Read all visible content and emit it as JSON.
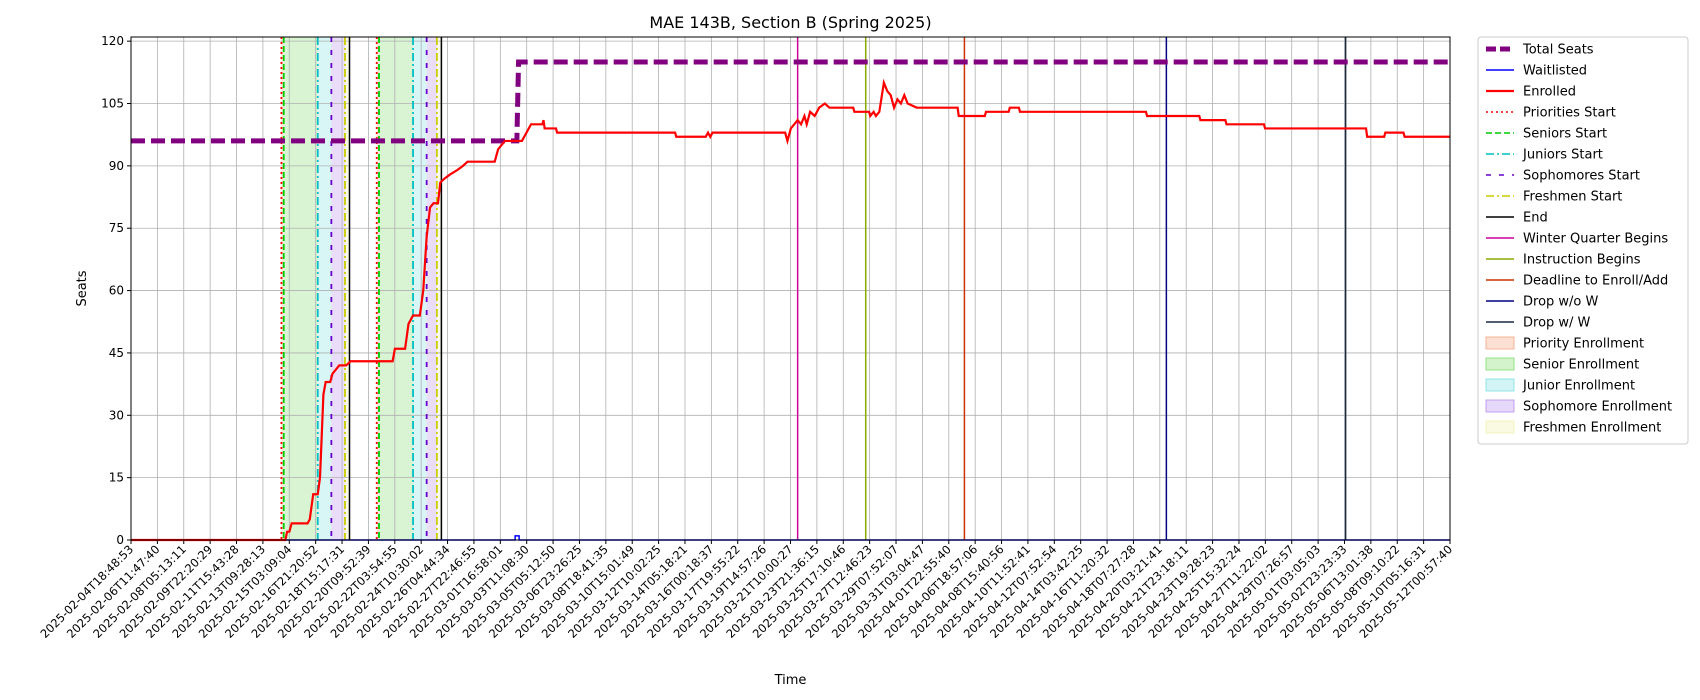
{
  "chart_data": {
    "type": "line",
    "title": "MAE 143B, Section B (Spring 2025)",
    "xlabel": "Time",
    "ylabel": "Seats",
    "ylim": [
      0,
      121
    ],
    "yticks": [
      0,
      15,
      30,
      45,
      60,
      75,
      90,
      105,
      120
    ],
    "grid": true,
    "legend_position": "outside-right",
    "x_range": [
      "2025-02-04T18:48:53",
      "2025-05-12T16:00:00"
    ],
    "xtick_labels": [
      "2025-02-04T18:48:53",
      "2025-02-06T11:47:40",
      "2025-02-08T05:13:11",
      "2025-02-09T22:20:29",
      "2025-02-11T15:43:28",
      "2025-02-13T09:28:13",
      "2025-02-15T03:09:04",
      "2025-02-16T21:20:52",
      "2025-02-18T15:17:31",
      "2025-02-20T09:52:39",
      "2025-02-22T03:54:55",
      "2025-02-24T10:30:02",
      "2025-02-26T04:44:34",
      "2025-02-27T22:46:55",
      "2025-03-01T16:58:01",
      "2025-03-03T11:08:30",
      "2025-03-05T05:12:50",
      "2025-03-06T23:26:25",
      "2025-03-08T18:41:35",
      "2025-03-10T15:01:49",
      "2025-03-12T10:02:25",
      "2025-03-14T05:18:21",
      "2025-03-16T00:18:37",
      "2025-03-17T19:55:22",
      "2025-03-19T14:57:26",
      "2025-03-21T10:00:27",
      "2025-03-23T21:36:15",
      "2025-03-25T17:10:46",
      "2025-03-27T12:46:23",
      "2025-03-29T07:52:07",
      "2025-03-31T03:04:47",
      "2025-04-01T22:55:40",
      "2025-04-06T18:57:06",
      "2025-04-08T15:40:56",
      "2025-04-10T11:52:41",
      "2025-04-12T07:52:54",
      "2025-04-14T03:42:25",
      "2025-04-16T11:20:32",
      "2025-04-18T07:27:28",
      "2025-04-20T03:21:41",
      "2025-04-21T23:18:11",
      "2025-04-23T19:28:23",
      "2025-04-25T15:32:24",
      "2025-04-27T11:22:02",
      "2025-04-29T07:26:57",
      "2025-05-01T03:05:03",
      "2025-05-02T23:23:33",
      "2025-05-06T13:01:38",
      "2025-05-08T09:10:22",
      "2025-05-10T05:16:31",
      "2025-05-12T00:57:40"
    ],
    "series": [
      {
        "name": "Total Seats",
        "color": "#800080",
        "style": "dashed-thick",
        "points": [
          [
            "2025-02-04T18:48:53",
            96
          ],
          [
            "2025-03-05T03:00:00",
            96
          ],
          [
            "2025-03-05T06:00:00",
            115
          ],
          [
            "2025-05-12T16:00:00",
            115
          ]
        ]
      },
      {
        "name": "Waitlisted",
        "color": "#0000ff",
        "style": "solid",
        "points": [
          [
            "2025-02-04T18:48:53",
            0
          ],
          [
            "2025-03-05T00:00:00",
            0
          ],
          [
            "2025-03-05T00:00:01",
            1
          ],
          [
            "2025-03-05T07:00:00",
            1
          ],
          [
            "2025-03-05T07:00:01",
            0
          ],
          [
            "2025-05-12T16:00:00",
            0
          ]
        ]
      },
      {
        "name": "Enrolled",
        "color": "#ff0000",
        "style": "solid",
        "points": [
          [
            "2025-02-04T18:48:53",
            0
          ],
          [
            "2025-02-16T03:00:00",
            0
          ],
          [
            "2025-02-16T06:00:00",
            2
          ],
          [
            "2025-02-16T10:00:00",
            2
          ],
          [
            "2025-02-16T14:00:00",
            4
          ],
          [
            "2025-02-17T18:00:00",
            4
          ],
          [
            "2025-02-17T22:00:00",
            5
          ],
          [
            "2025-02-18T01:00:00",
            8
          ],
          [
            "2025-02-18T04:00:00",
            11
          ],
          [
            "2025-02-18T12:00:00",
            11
          ],
          [
            "2025-02-18T16:00:00",
            15
          ],
          [
            "2025-02-18T19:00:00",
            25
          ],
          [
            "2025-02-18T22:00:00",
            35
          ],
          [
            "2025-02-19T02:00:00",
            38
          ],
          [
            "2025-02-19T10:00:00",
            38
          ],
          [
            "2025-02-19T14:00:00",
            40
          ],
          [
            "2025-02-19T20:00:00",
            41
          ],
          [
            "2025-02-20T02:00:00",
            42
          ],
          [
            "2025-02-20T14:00:00",
            42
          ],
          [
            "2025-02-20T22:00:00",
            43
          ],
          [
            "2025-02-24T00:00:00",
            43
          ],
          [
            "2025-02-24T04:00:00",
            46
          ],
          [
            "2025-02-24T22:00:00",
            46
          ],
          [
            "2025-02-25T04:00:00",
            52
          ],
          [
            "2025-02-25T12:00:00",
            54
          ],
          [
            "2025-02-26T00:00:00",
            54
          ],
          [
            "2025-02-26T06:00:00",
            60
          ],
          [
            "2025-02-26T12:00:00",
            73
          ],
          [
            "2025-02-26T18:00:00",
            80
          ],
          [
            "2025-02-27T00:00:00",
            81
          ],
          [
            "2025-02-27T08:00:00",
            81
          ],
          [
            "2025-02-27T12:00:00",
            86
          ],
          [
            "2025-02-27T20:00:00",
            87
          ],
          [
            "2025-02-28T06:00:00",
            88
          ],
          [
            "2025-02-28T18:00:00",
            89
          ],
          [
            "2025-03-01T04:00:00",
            90
          ],
          [
            "2025-03-01T12:00:00",
            91
          ],
          [
            "2025-03-03T12:00:00",
            91
          ],
          [
            "2025-03-03T18:00:00",
            94
          ],
          [
            "2025-03-04T06:00:00",
            96
          ],
          [
            "2025-03-05T12:00:00",
            96
          ],
          [
            "2025-03-05T20:00:00",
            98
          ],
          [
            "2025-03-06T04:00:00",
            100
          ],
          [
            "2025-03-07T00:00:00",
            100
          ],
          [
            "2025-03-07T02:00:00",
            101
          ],
          [
            "2025-03-07T04:00:00",
            99
          ],
          [
            "2025-03-08T00:00:00",
            99
          ],
          [
            "2025-03-08T02:00:00",
            98
          ],
          [
            "2025-03-16T18:00:00",
            98
          ],
          [
            "2025-03-16T20:00:00",
            97
          ],
          [
            "2025-03-19T00:00:00",
            97
          ],
          [
            "2025-03-19T04:00:00",
            98
          ],
          [
            "2025-03-19T08:00:00",
            97
          ],
          [
            "2025-03-19T12:00:00",
            98
          ],
          [
            "2025-03-24T20:00:00",
            98
          ],
          [
            "2025-03-25T00:00:00",
            96
          ],
          [
            "2025-03-25T06:00:00",
            99
          ],
          [
            "2025-03-25T18:00:00",
            101
          ],
          [
            "2025-03-26T00:00:00",
            100
          ],
          [
            "2025-03-26T06:00:00",
            102
          ],
          [
            "2025-03-26T10:00:00",
            100
          ],
          [
            "2025-03-26T16:00:00",
            103
          ],
          [
            "2025-03-27T00:00:00",
            102
          ],
          [
            "2025-03-27T08:00:00",
            104
          ],
          [
            "2025-03-27T18:00:00",
            105
          ],
          [
            "2025-03-28T02:00:00",
            104
          ],
          [
            "2025-03-29T20:00:00",
            104
          ],
          [
            "2025-03-29T22:00:00",
            103
          ],
          [
            "2025-03-31T00:00:00",
            103
          ],
          [
            "2025-03-31T02:00:00",
            102
          ],
          [
            "2025-03-31T08:00:00",
            103
          ],
          [
            "2025-03-31T12:00:00",
            102
          ],
          [
            "2025-03-31T18:00:00",
            103
          ],
          [
            "2025-04-01T02:00:00",
            110
          ],
          [
            "2025-04-01T08:00:00",
            108
          ],
          [
            "2025-04-01T14:00:00",
            107
          ],
          [
            "2025-04-01T20:00:00",
            104
          ],
          [
            "2025-04-02T02:00:00",
            106
          ],
          [
            "2025-04-02T08:00:00",
            105
          ],
          [
            "2025-04-02T14:00:00",
            107
          ],
          [
            "2025-04-02T20:00:00",
            105
          ],
          [
            "2025-04-03T12:00:00",
            104
          ],
          [
            "2025-04-06T12:00:00",
            104
          ],
          [
            "2025-04-06T14:00:00",
            102
          ],
          [
            "2025-04-08T12:00:00",
            102
          ],
          [
            "2025-04-08T14:00:00",
            103
          ],
          [
            "2025-04-10T06:00:00",
            103
          ],
          [
            "2025-04-10T08:00:00",
            104
          ],
          [
            "2025-04-11T00:00:00",
            104
          ],
          [
            "2025-04-11T02:00:00",
            103
          ],
          [
            "2025-04-20T08:00:00",
            103
          ],
          [
            "2025-04-20T10:00:00",
            102
          ],
          [
            "2025-04-24T06:00:00",
            102
          ],
          [
            "2025-04-24T08:00:00",
            101
          ],
          [
            "2025-04-26T04:00:00",
            101
          ],
          [
            "2025-04-26T06:00:00",
            100
          ],
          [
            "2025-04-29T00:00:00",
            100
          ],
          [
            "2025-04-29T02:00:00",
            99
          ],
          [
            "2025-05-06T12:00:00",
            99
          ],
          [
            "2025-05-06T14:00:00",
            97
          ],
          [
            "2025-05-07T20:00:00",
            97
          ],
          [
            "2025-05-07T22:00:00",
            98
          ],
          [
            "2025-05-09T06:00:00",
            98
          ],
          [
            "2025-05-09T08:00:00",
            97
          ],
          [
            "2025-05-12T16:00:00",
            97
          ]
        ]
      }
    ],
    "vertical_lines": [
      {
        "name": "Priorities Start",
        "color": "#ff0000",
        "style": "dotted",
        "x": [
          "2025-02-15T20:00:00",
          "2025-02-22T20:00:00"
        ]
      },
      {
        "name": "Seniors Start",
        "color": "#00cc00",
        "style": "dashed",
        "x": [
          "2025-02-16T00:00:00",
          "2025-02-23T00:00:00"
        ]
      },
      {
        "name": "Juniors Start",
        "color": "#00bfbf",
        "style": "dashdot",
        "x": [
          "2025-02-18T12:00:00",
          "2025-02-25T12:00:00"
        ]
      },
      {
        "name": "Sophomores Start",
        "color": "#6600cc",
        "style": "loosedash",
        "x": [
          "2025-02-19T12:00:00",
          "2025-02-26T12:00:00"
        ]
      },
      {
        "name": "Freshmen Start",
        "color": "#cccc00",
        "style": "dashdot",
        "x": [
          "2025-02-20T12:00:00",
          "2025-02-27T06:00:00"
        ]
      },
      {
        "name": "End",
        "color": "#000000",
        "style": "solid",
        "x": [
          "2025-02-20T20:00:00",
          "2025-02-27T14:00:00"
        ]
      },
      {
        "name": "Winter Quarter Begins",
        "color": "#cc0099",
        "style": "solid",
        "x": [
          "2025-03-25T18:00:00"
        ]
      },
      {
        "name": "Instruction Begins",
        "color": "#88aa00",
        "style": "solid",
        "x": [
          "2025-03-30T18:00:00"
        ]
      },
      {
        "name": "Deadline to Enroll/Add",
        "color": "#cc3300",
        "style": "solid",
        "x": [
          "2025-04-07T00:00:00"
        ]
      },
      {
        "name": "Drop w/o W",
        "color": "#000080",
        "style": "solid",
        "x": [
          "2025-04-21T20:00:00"
        ]
      },
      {
        "name": "Drop w/ W",
        "color": "#1a2a40",
        "style": "solid",
        "x": [
          "2025-05-05T00:00:00"
        ]
      }
    ],
    "spans": [
      {
        "name": "Priority Enrollment",
        "color": "#f4a582",
        "x": [
          [
            "2025-02-15T20:00:00",
            "2025-02-16T00:00:00"
          ],
          [
            "2025-02-22T20:00:00",
            "2025-02-23T00:00:00"
          ]
        ]
      },
      {
        "name": "Senior Enrollment",
        "color": "#7fdc6e",
        "x": [
          [
            "2025-02-16T00:00:00",
            "2025-02-18T12:00:00"
          ],
          [
            "2025-02-23T00:00:00",
            "2025-02-25T12:00:00"
          ]
        ]
      },
      {
        "name": "Junior Enrollment",
        "color": "#7ee0e0",
        "x": [
          [
            "2025-02-18T12:00:00",
            "2025-02-19T12:00:00"
          ],
          [
            "2025-02-25T12:00:00",
            "2025-02-26T12:00:00"
          ]
        ]
      },
      {
        "name": "Sophomore Enrollment",
        "color": "#b88fef",
        "x": [
          [
            "2025-02-19T12:00:00",
            "2025-02-20T12:00:00"
          ],
          [
            "2025-02-26T12:00:00",
            "2025-02-27T06:00:00"
          ]
        ]
      },
      {
        "name": "Freshmen Enrollment",
        "color": "#f0f0b0",
        "x": [
          [
            "2025-02-20T12:00:00",
            "2025-02-20T20:00:00"
          ],
          [
            "2025-02-27T06:00:00",
            "2025-02-27T14:00:00"
          ]
        ]
      }
    ],
    "legend": [
      {
        "label": "Total Seats",
        "kind": "line",
        "color": "#800080",
        "style": "dashed-thick"
      },
      {
        "label": "Waitlisted",
        "kind": "line",
        "color": "#0000ff",
        "style": "solid"
      },
      {
        "label": "Enrolled",
        "kind": "line",
        "color": "#ff0000",
        "style": "solid-thick"
      },
      {
        "label": "Priorities Start",
        "kind": "line",
        "color": "#ff0000",
        "style": "dotted"
      },
      {
        "label": "Seniors Start",
        "kind": "line",
        "color": "#00cc00",
        "style": "dashed"
      },
      {
        "label": "Juniors Start",
        "kind": "line",
        "color": "#00bfbf",
        "style": "dashdot"
      },
      {
        "label": "Sophomores Start",
        "kind": "line",
        "color": "#6600cc",
        "style": "loosedash"
      },
      {
        "label": "Freshmen Start",
        "kind": "line",
        "color": "#cccc00",
        "style": "dashdot"
      },
      {
        "label": "End",
        "kind": "line",
        "color": "#000000",
        "style": "solid"
      },
      {
        "label": "Winter Quarter Begins",
        "kind": "line",
        "color": "#cc0099",
        "style": "solid"
      },
      {
        "label": "Instruction Begins",
        "kind": "line",
        "color": "#88aa00",
        "style": "solid"
      },
      {
        "label": "Deadline to Enroll/Add",
        "kind": "line",
        "color": "#cc3300",
        "style": "solid"
      },
      {
        "label": "Drop w/o W",
        "kind": "line",
        "color": "#000080",
        "style": "solid"
      },
      {
        "label": "Drop w/ W",
        "kind": "line",
        "color": "#1a2a40",
        "style": "solid"
      },
      {
        "label": "Priority Enrollment",
        "kind": "patch",
        "color": "#f4a582"
      },
      {
        "label": "Senior Enrollment",
        "kind": "patch",
        "color": "#7fdc6e"
      },
      {
        "label": "Junior Enrollment",
        "kind": "patch",
        "color": "#7ee0e0"
      },
      {
        "label": "Sophomore Enrollment",
        "kind": "patch",
        "color": "#b88fef"
      },
      {
        "label": "Freshmen Enrollment",
        "kind": "patch",
        "color": "#f0f0b0"
      }
    ]
  }
}
